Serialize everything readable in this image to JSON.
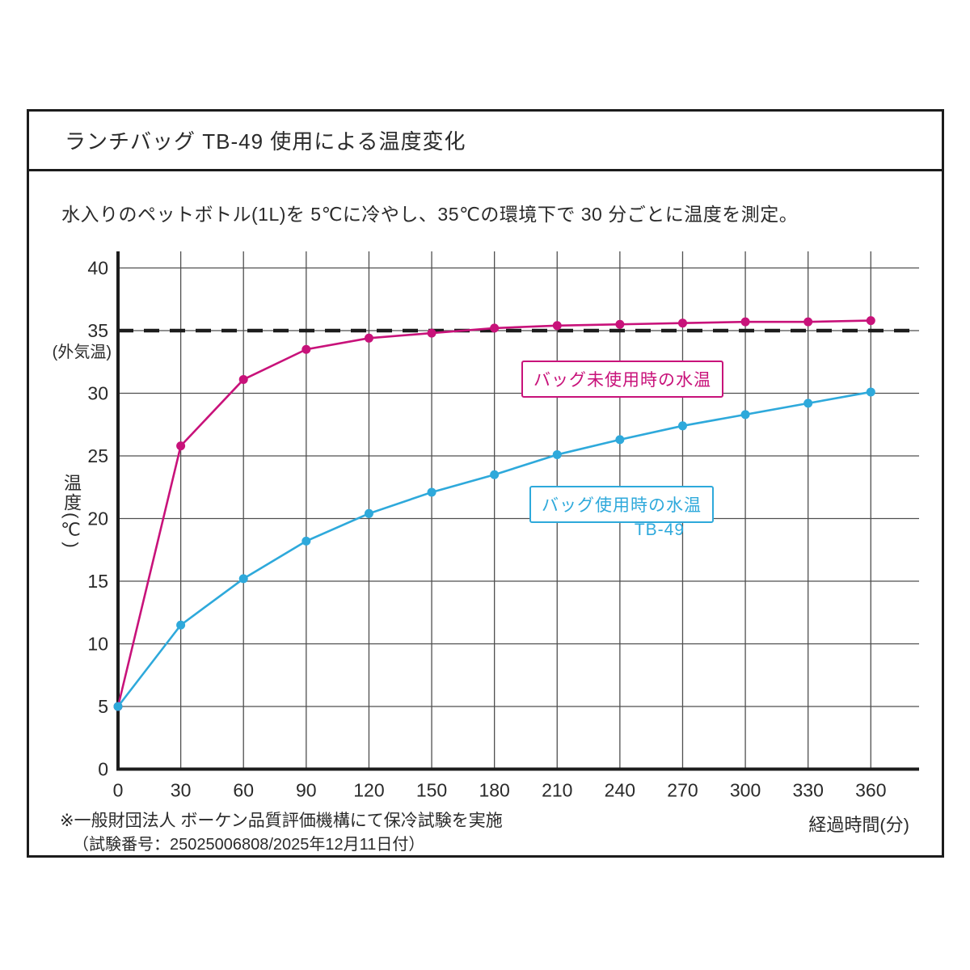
{
  "page": {
    "title": "ランチバッグ TB-49 使用による温度変化",
    "subtitle": "水入りのペットボトル(1L)を 5℃に冷やし、35℃の環境下で 30 分ごとに温度を測定。"
  },
  "labels": {
    "y_axis_title": "温度(℃)",
    "x_axis_title": "経過時間(分)",
    "ambient": "(外気温)",
    "series_unused_box": "バッグ未使用時の水温",
    "series_used_box": "バッグ使用時の水温",
    "series_used_badge": "TB-49"
  },
  "footnotes": {
    "line1": "※一般財団法人 ボーケン品質評価機構にて保冷試験を実施",
    "line2": "（試験番号：25025006808/2025年12月11日付）"
  },
  "colors": {
    "series_unused": "#c8127a",
    "series_used": "#2ea9db",
    "grid": "#4f4f4f",
    "axis": "#1c1c1c",
    "ambient_dash": "#1c1c1c"
  },
  "chart_data": {
    "type": "line",
    "title": "ランチバッグ TB-49 使用による温度変化",
    "xlabel": "経過時間(分)",
    "ylabel": "温度(℃)",
    "x": [
      0,
      30,
      60,
      90,
      120,
      150,
      180,
      210,
      240,
      270,
      300,
      330,
      360
    ],
    "series": [
      {
        "name": "バッグ未使用時の水温",
        "color": "#c8127a",
        "values": [
          5,
          25.8,
          31.1,
          33.5,
          34.4,
          34.8,
          35.2,
          35.4,
          35.5,
          35.6,
          35.7,
          35.7,
          35.8
        ]
      },
      {
        "name": "バッグ使用時の水温 TB-49",
        "color": "#2ea9db",
        "values": [
          5,
          11.5,
          15.2,
          18.2,
          20.4,
          22.1,
          23.5,
          25.1,
          26.3,
          27.4,
          28.3,
          29.2,
          30.1
        ]
      }
    ],
    "reference_line": {
      "value": 35,
      "label": "(外気温)",
      "style": "dashed"
    },
    "xlim": [
      0,
      384
    ],
    "ylim": [
      0,
      41.5
    ],
    "x_ticks": [
      0,
      30,
      60,
      90,
      120,
      150,
      180,
      210,
      240,
      270,
      300,
      330,
      360
    ],
    "y_ticks": [
      0,
      5,
      10,
      15,
      20,
      25,
      30,
      35,
      40
    ],
    "grid": true,
    "legend_position": "inline-boxes",
    "marker": "circle"
  }
}
